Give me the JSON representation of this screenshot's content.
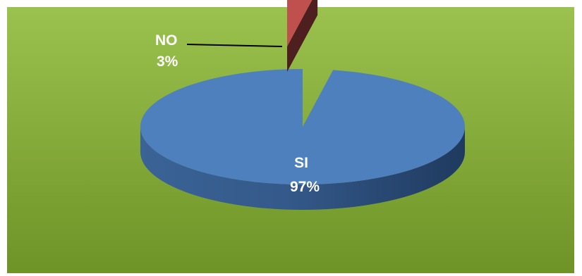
{
  "chart_data": {
    "type": "pie",
    "style": "3d-exploded",
    "title": "",
    "slices": [
      {
        "label": "SI",
        "value": 97,
        "value_label": "97%",
        "color": "#4E80BD"
      },
      {
        "label": "NO",
        "value": 3,
        "value_label": "3%",
        "color": "#C0504D"
      }
    ],
    "legend": "none"
  },
  "colors": {
    "background_top": "#9BC24E",
    "background_bottom": "#6E9327",
    "frame_border": "#8AB146"
  }
}
